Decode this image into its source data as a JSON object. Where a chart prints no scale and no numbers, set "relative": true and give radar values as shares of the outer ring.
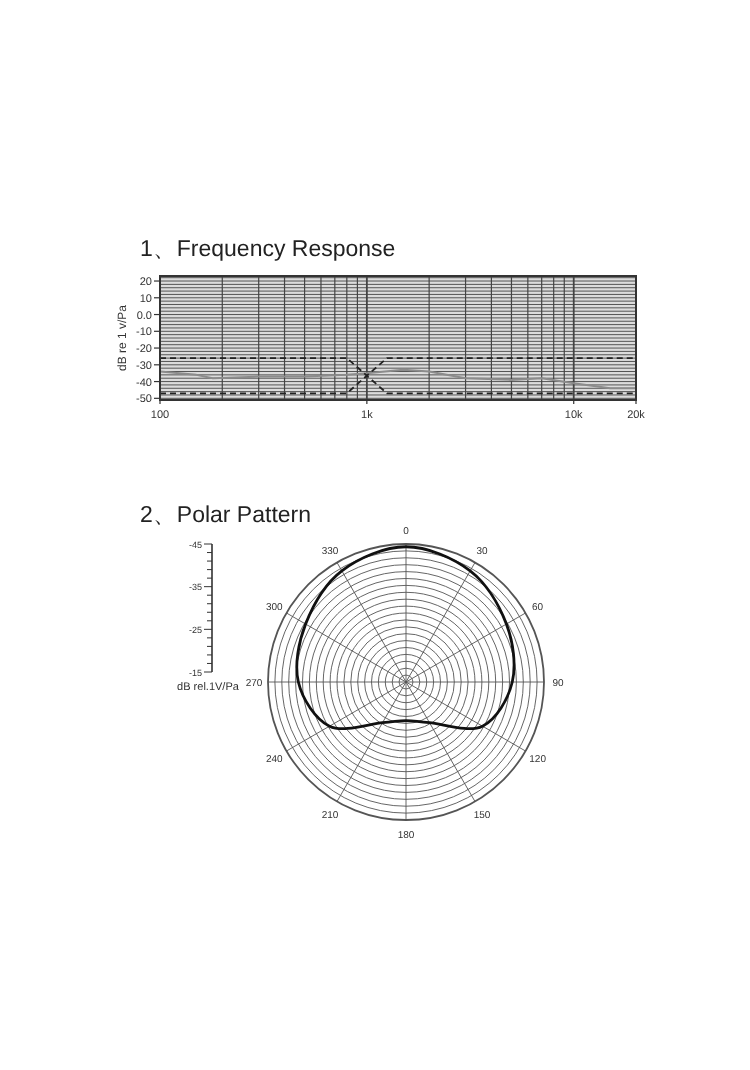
{
  "chart_data": [
    {
      "type": "line",
      "title": "1、Frequency Response",
      "ylabel": "dB re 1 v/Pa",
      "log": "x",
      "grid": true,
      "xlim": [
        100,
        20000
      ],
      "xticks": [
        100,
        {
          "value": 1000,
          "label": "1k"
        },
        {
          "value": 10000,
          "label": "10k"
        },
        {
          "value": 20000,
          "label": "20k"
        }
      ],
      "ylim": [
        -51,
        23
      ],
      "yticks": [
        20,
        10,
        {
          "value": 0,
          "label": "0.0"
        },
        -10,
        -20,
        -30,
        -40,
        -50
      ],
      "x": [
        100,
        150,
        180,
        300,
        500,
        800,
        1000,
        1500,
        2000,
        3000,
        5000,
        7000,
        10000,
        15000,
        20000
      ],
      "series": [
        {
          "color": "#8c8c8c",
          "values": [
            -34,
            -36,
            -38,
            -37,
            -37,
            -36,
            -35,
            -33,
            -34,
            -38,
            -39,
            -38,
            -41,
            -44,
            -44
          ]
        },
        {
          "color": "#222222",
          "line_style": "dashed",
          "x": [
            100,
            800,
            1250,
            20000
          ],
          "values": [
            -26,
            -26,
            -47,
            -47
          ]
        },
        {
          "color": "#222222",
          "line_style": "dashed",
          "x": [
            100,
            800,
            1250,
            20000
          ],
          "values": [
            -47,
            -47,
            -26,
            -26
          ]
        }
      ]
    },
    {
      "type": "radar",
      "title": "2、Polar Pattern",
      "relative": true,
      "ylabel": "dB rel.1V/Pa",
      "annotations": [
        "-45",
        "-35",
        "-25",
        "-15"
      ],
      "categories": [
        "0",
        "30",
        "60",
        "90",
        "120",
        "150",
        "180",
        "210",
        "240",
        "270",
        "300",
        "330"
      ],
      "series": [
        {
          "color": "#111111",
          "values": [
            0.98,
            0.93,
            0.84,
            0.77,
            0.64,
            0.34,
            0.28,
            0.34,
            0.64,
            0.78,
            0.84,
            0.93
          ]
        }
      ]
    }
  ]
}
